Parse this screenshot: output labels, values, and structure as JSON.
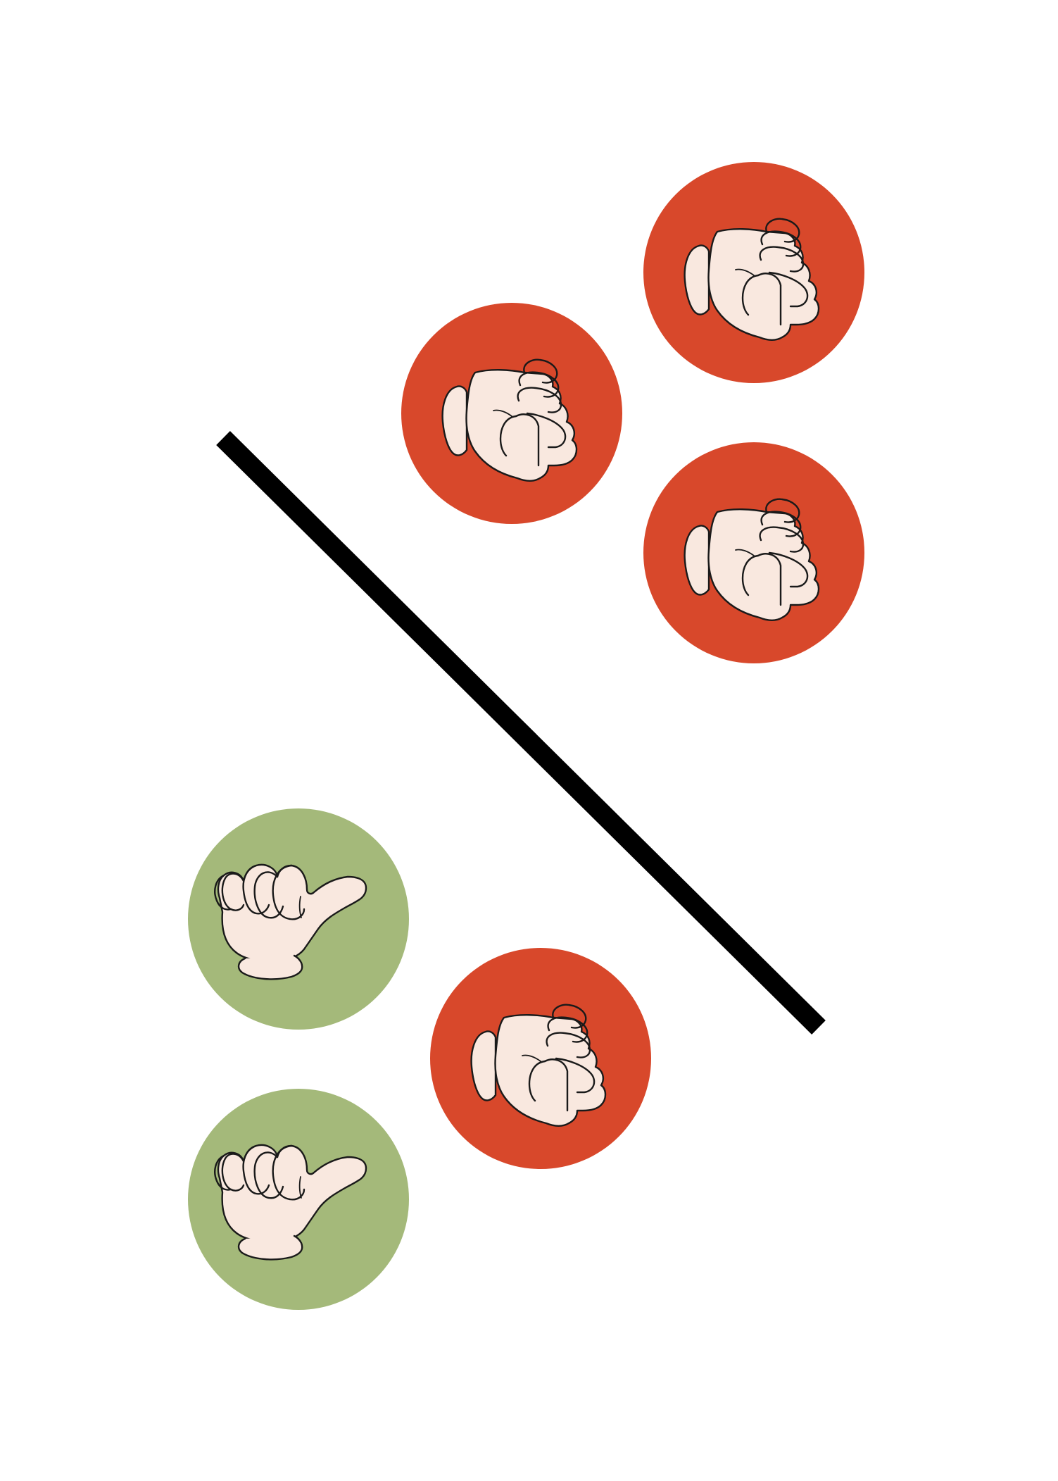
{
  "diagram": {
    "background": "#ffffff",
    "divider": {
      "color": "#000000"
    },
    "colors": {
      "thumbs_down_badge": "#d8482b",
      "thumbs_up_badge": "#a4b97a",
      "hand_fill": "#f9e8df",
      "hand_outline": "#1a1a1a"
    },
    "badges": [
      {
        "id": "badge-1",
        "icon": "thumbs-down-icon",
        "variant": "thumbs_down"
      },
      {
        "id": "badge-2",
        "icon": "thumbs-down-icon",
        "variant": "thumbs_down"
      },
      {
        "id": "badge-3",
        "icon": "thumbs-down-icon",
        "variant": "thumbs_down"
      },
      {
        "id": "badge-4",
        "icon": "thumbs-up-icon",
        "variant": "thumbs_up"
      },
      {
        "id": "badge-5",
        "icon": "thumbs-down-icon",
        "variant": "thumbs_down"
      },
      {
        "id": "badge-6",
        "icon": "thumbs-up-icon",
        "variant": "thumbs_up"
      }
    ]
  }
}
